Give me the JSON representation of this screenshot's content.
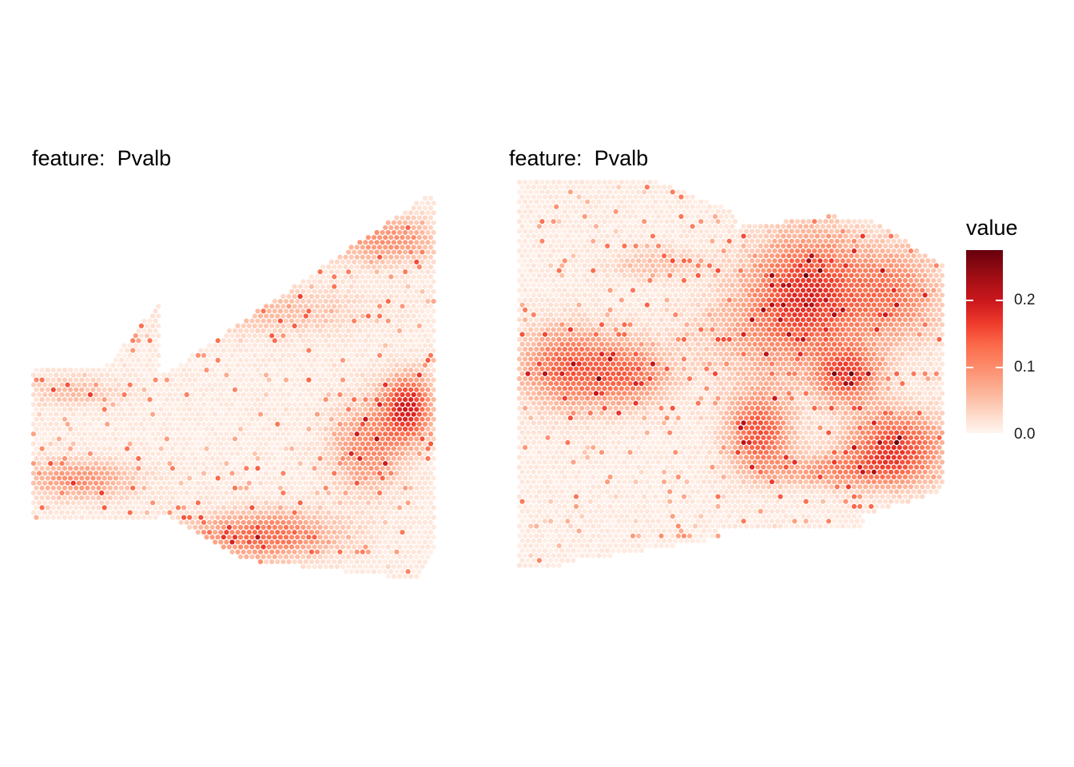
{
  "chart_data": [
    {
      "type": "scatter",
      "title": "feature:  Pvalb",
      "description_of_marks": "hexagonal spot array, colour encodes value",
      "value_range": [
        0,
        0.28
      ]
    },
    {
      "type": "scatter",
      "title": "feature:  Pvalb",
      "description_of_marks": "hexagonal spot array, colour encodes value",
      "value_range": [
        0,
        0.28
      ]
    }
  ],
  "legend": {
    "title": "value",
    "ticks": [
      {
        "label": "0.2",
        "value": 0.2
      },
      {
        "label": "0.1",
        "value": 0.1
      },
      {
        "label": "0.0",
        "value": 0.0
      }
    ],
    "colors": [
      "#fff5f0",
      "#fee0d2",
      "#fcbba1",
      "#fc9272",
      "#fb6a4a",
      "#ef3b2c",
      "#cb181d",
      "#a50f15",
      "#67000d"
    ]
  }
}
